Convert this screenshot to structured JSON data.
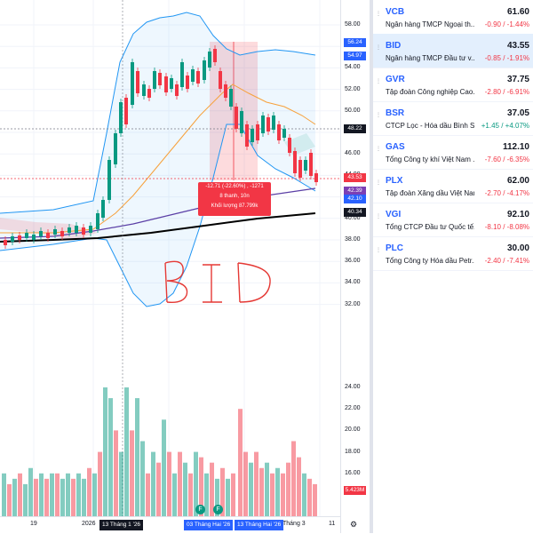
{
  "symbol": "BID",
  "price_axis": {
    "ticks": [
      "58.00",
      "56.00",
      "54.00",
      "52.00",
      "50.00",
      "48.00",
      "46.00",
      "44.00",
      "42.00",
      "40.00",
      "38.00",
      "36.00",
      "34.00",
      "32.00"
    ],
    "labels": [
      {
        "text": "56.24",
        "color": "#2962ff"
      },
      {
        "text": "54.97",
        "color": "#2962ff"
      },
      {
        "text": "48.22",
        "color": "#131722"
      },
      {
        "text": "43.53",
        "color": "#f23645"
      },
      {
        "text": "42.39",
        "color": "#7b3fb5"
      },
      {
        "text": "42.10",
        "color": "#2962ff"
      },
      {
        "text": "40.34",
        "color": "#131722"
      }
    ]
  },
  "volume_axis": {
    "ticks": [
      "24.00",
      "22.00",
      "20.00",
      "18.00",
      "16.00"
    ],
    "label": "5.423M"
  },
  "time_axis": {
    "ticks": [
      "19",
      "2026",
      "Tháng 3",
      "11"
    ],
    "labels": [
      "13 Tháng 1 '26",
      "03 Tháng Hai '26",
      "13 Tháng Hai '26"
    ],
    "event_markers": [
      "F",
      "F"
    ]
  },
  "measure_tooltip": {
    "line1": "-12.71 (-22.60%) , -1271",
    "line2": "8 thanh, 10n",
    "line3": "Khối lượng 87.799k"
  },
  "annotation_text": "BID",
  "watchlist": [
    {
      "symbol": "VCB",
      "price": "61.60",
      "name": "Ngân hàng TMCP Ngoại th...",
      "change": "-0.90 / -1.44%",
      "direction": "down",
      "active": false
    },
    {
      "symbol": "BID",
      "price": "43.55",
      "name": "Ngân hàng TMCP Đầu tư v...",
      "change": "-0.85 / -1.91%",
      "direction": "down",
      "active": true
    },
    {
      "symbol": "GVR",
      "price": "37.75",
      "name": "Tập đoàn Công nghiệp Cao...",
      "change": "-2.80 / -6.91%",
      "direction": "down",
      "active": false
    },
    {
      "symbol": "BSR",
      "price": "37.05",
      "name": "CTCP Lọc - Hóa dầu Bình S...",
      "change": "+1.45 / +4.07%",
      "direction": "up",
      "active": false
    },
    {
      "symbol": "GAS",
      "price": "112.10",
      "name": "Tổng Công ty khí Việt Nam ...",
      "change": "-7.60 / -6.35%",
      "direction": "down",
      "active": false
    },
    {
      "symbol": "PLX",
      "price": "62.00",
      "name": "Tập đoàn Xăng dầu Việt Nam",
      "change": "-2.70 / -4.17%",
      "direction": "down",
      "active": false
    },
    {
      "symbol": "VGI",
      "price": "92.10",
      "name": "Tổng CTCP Đầu tư Quốc tế...",
      "change": "-8.10 / -8.08%",
      "direction": "down",
      "active": false
    },
    {
      "symbol": "PLC",
      "price": "30.00",
      "name": "Tổng Công ty Hóa dầu Petr...",
      "change": "-2.40 / -7.41%",
      "direction": "down",
      "active": false
    }
  ],
  "colors": {
    "up": "#089981",
    "down": "#f23645",
    "accent": "#2962ff",
    "bb": "#2196f3",
    "ma_orange": "#f7a13b",
    "ma_purple": "#5b3fa6",
    "ma_black": "#000000"
  }
}
